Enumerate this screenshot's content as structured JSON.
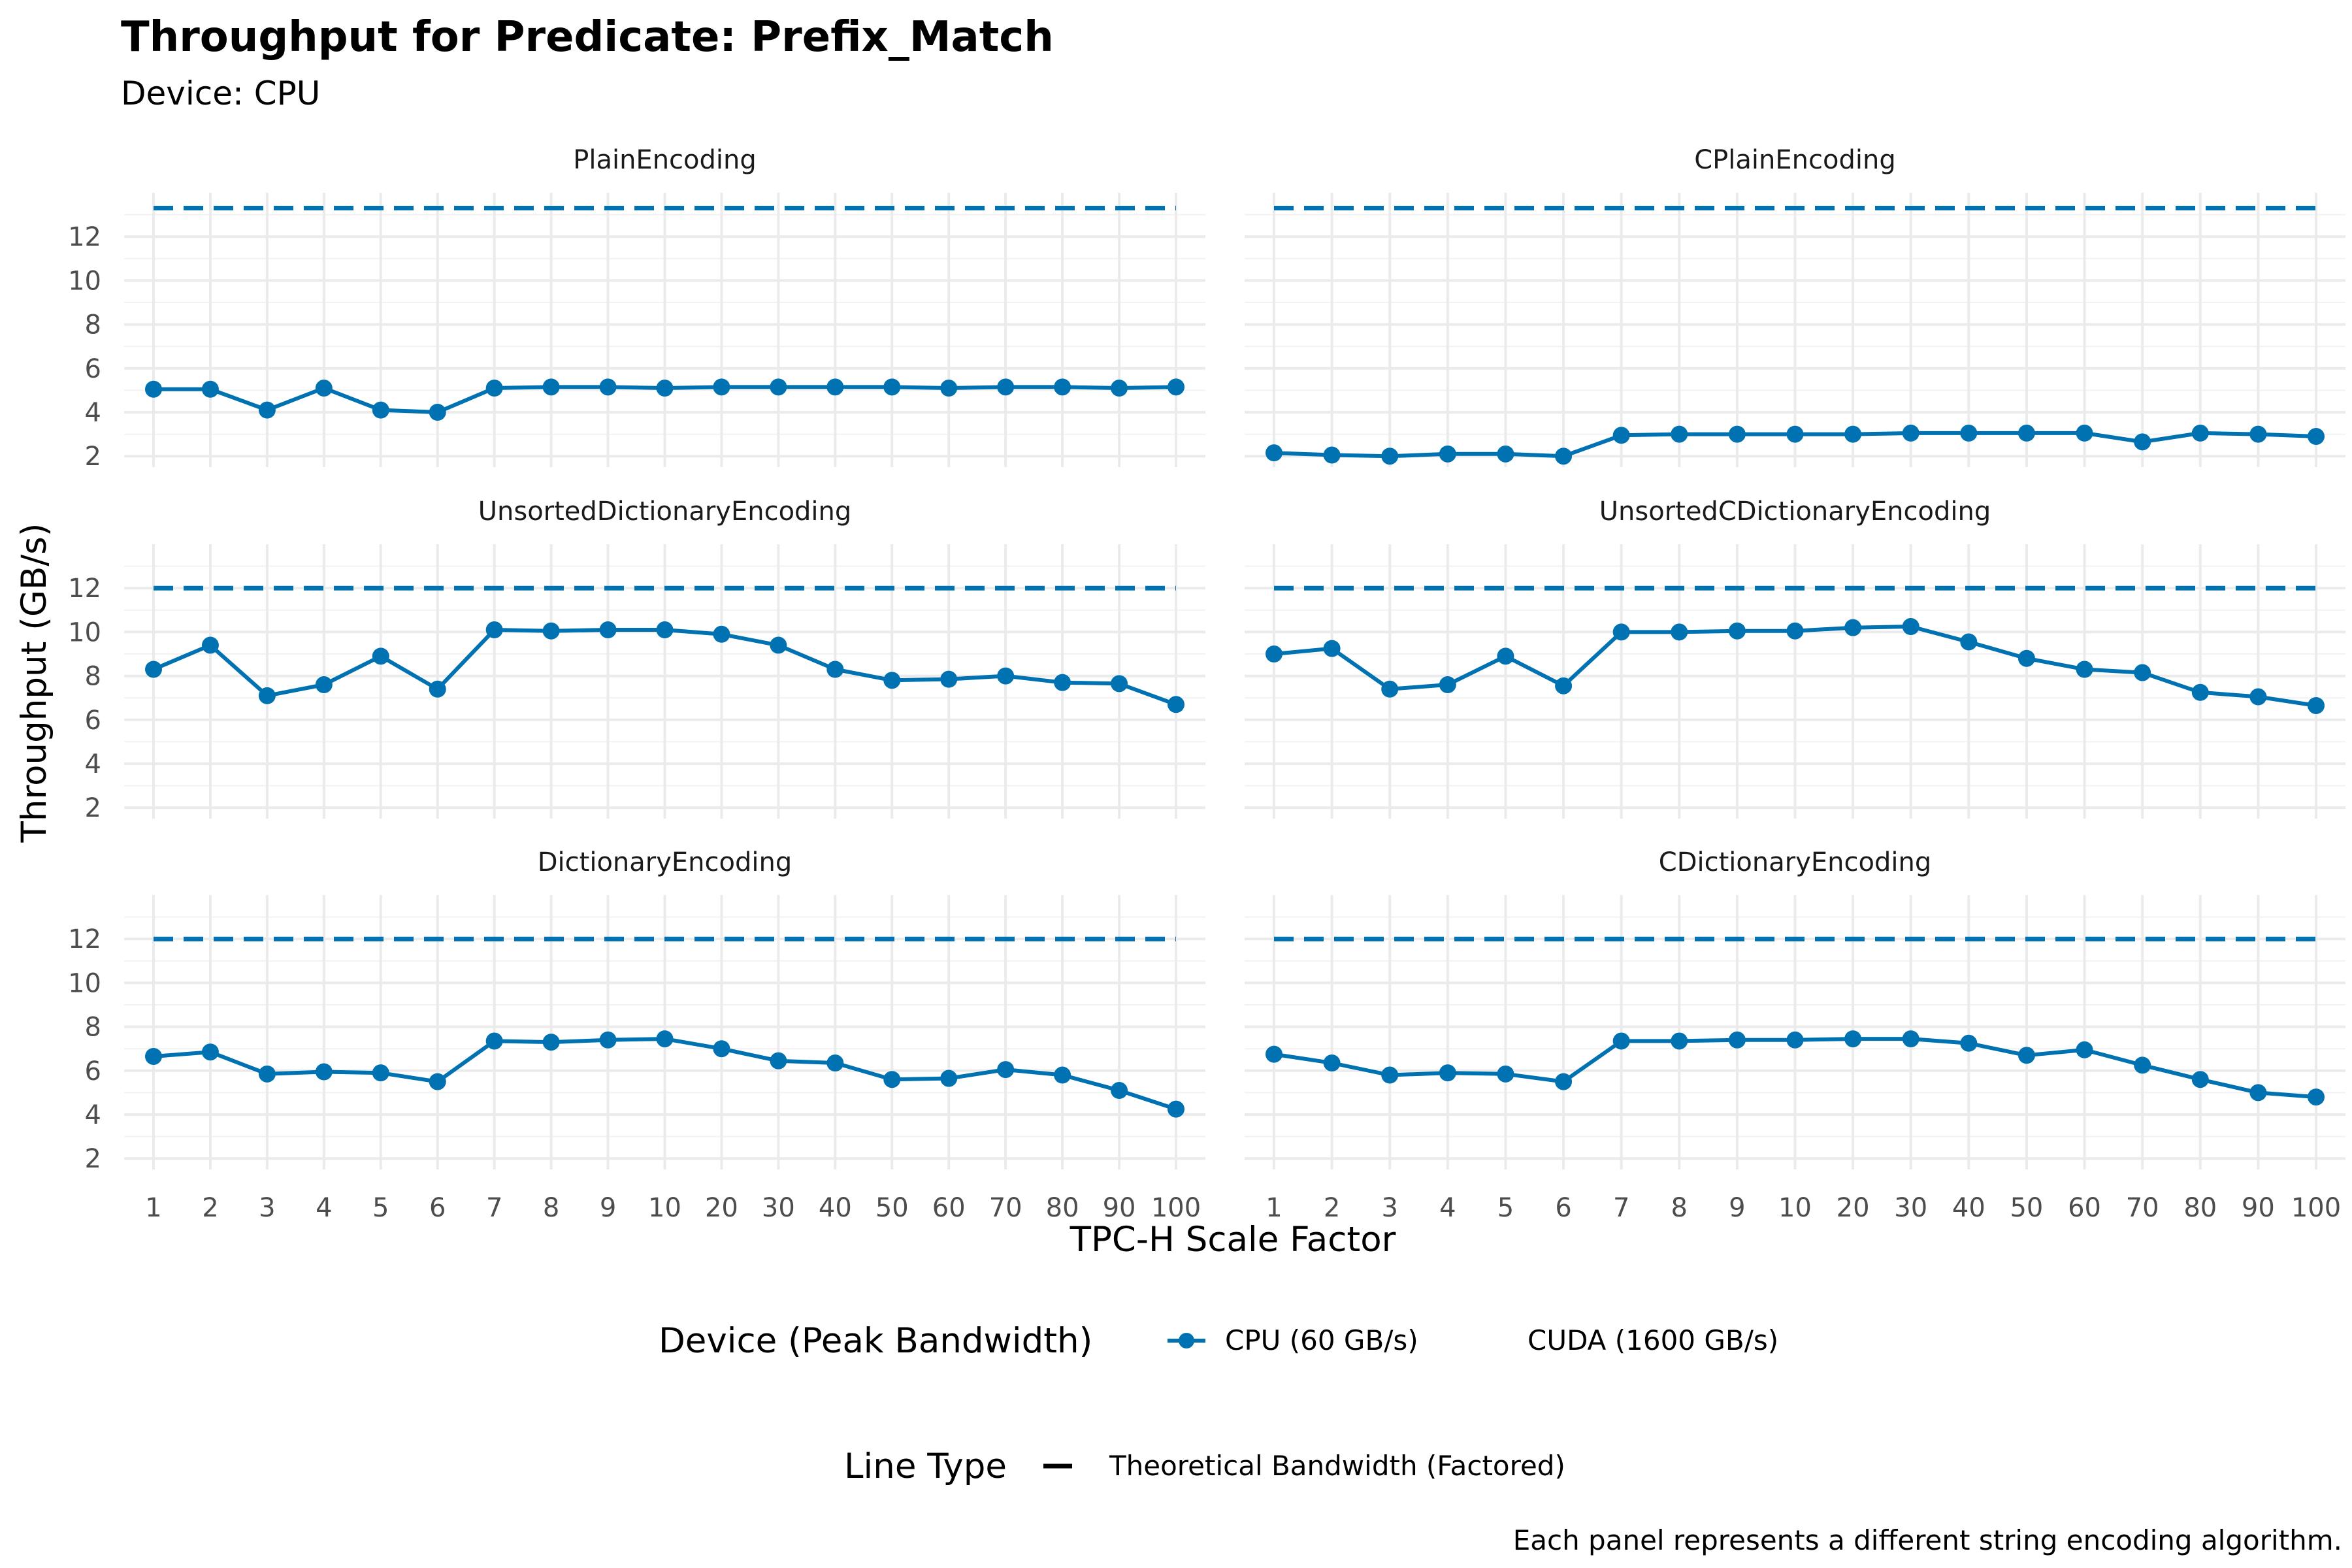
{
  "chart_data": {
    "type": "line",
    "title": "Throughput for Predicate: Prefix_Match",
    "subtitle": "Device: CPU",
    "xlabel": "TPC-H Scale Factor",
    "ylabel": "Throughput (GB/s)",
    "caption": "Each panel represents a different string encoding algorithm.",
    "x": [
      "1",
      "2",
      "3",
      "4",
      "5",
      "6",
      "7",
      "8",
      "9",
      "10",
      "20",
      "30",
      "40",
      "50",
      "60",
      "70",
      "80",
      "90",
      "100"
    ],
    "y_ticks": [
      2,
      4,
      6,
      8,
      10,
      12
    ],
    "ylim": [
      1.5,
      14
    ],
    "grid": true,
    "series_color": "#0072B2",
    "legend": {
      "position": "bottom",
      "device_title": "Device (Peak Bandwidth)",
      "device_entries": [
        "CPU (60 GB/s)",
        "CUDA (1600 GB/s)"
      ],
      "linetype_title": "Line Type",
      "linetype_entries": [
        "Theoretical Bandwidth (Factored)"
      ]
    },
    "panels": [
      {
        "name": "PlainEncoding",
        "theoretical": 13.3,
        "values": [
          5.05,
          5.05,
          4.1,
          5.1,
          4.1,
          4.0,
          5.1,
          5.15,
          5.15,
          5.1,
          5.15,
          5.15,
          5.15,
          5.15,
          5.1,
          5.15,
          5.15,
          5.1,
          5.15
        ]
      },
      {
        "name": "CPlainEncoding",
        "theoretical": 13.3,
        "values": [
          2.15,
          2.05,
          2.0,
          2.1,
          2.1,
          2.0,
          2.95,
          3.0,
          3.0,
          3.0,
          3.0,
          3.05,
          3.05,
          3.05,
          3.05,
          2.65,
          3.05,
          3.0,
          2.9
        ]
      },
      {
        "name": "UnsortedDictionaryEncoding",
        "theoretical": 12.0,
        "values": [
          8.3,
          9.4,
          7.1,
          7.6,
          8.9,
          7.4,
          10.1,
          10.05,
          10.1,
          10.1,
          9.9,
          9.4,
          8.3,
          7.8,
          7.85,
          8.0,
          7.7,
          7.65,
          6.7
        ]
      },
      {
        "name": "UnsortedCDictionaryEncoding",
        "theoretical": 12.0,
        "values": [
          9.0,
          9.25,
          7.4,
          7.6,
          8.9,
          7.55,
          10.0,
          10.0,
          10.05,
          10.05,
          10.2,
          10.25,
          9.55,
          8.8,
          8.3,
          8.15,
          7.25,
          7.05,
          6.65
        ]
      },
      {
        "name": "DictionaryEncoding",
        "theoretical": 12.0,
        "values": [
          6.65,
          6.85,
          5.85,
          5.95,
          5.9,
          5.5,
          7.35,
          7.3,
          7.4,
          7.45,
          7.0,
          6.45,
          6.35,
          5.6,
          5.65,
          6.05,
          5.8,
          5.1,
          4.25
        ]
      },
      {
        "name": "CDictionaryEncoding",
        "theoretical": 12.0,
        "values": [
          6.75,
          6.35,
          5.8,
          5.9,
          5.85,
          5.5,
          7.35,
          7.35,
          7.4,
          7.4,
          7.45,
          7.45,
          7.25,
          6.7,
          6.95,
          6.25,
          5.6,
          5.0,
          4.8
        ]
      }
    ]
  }
}
